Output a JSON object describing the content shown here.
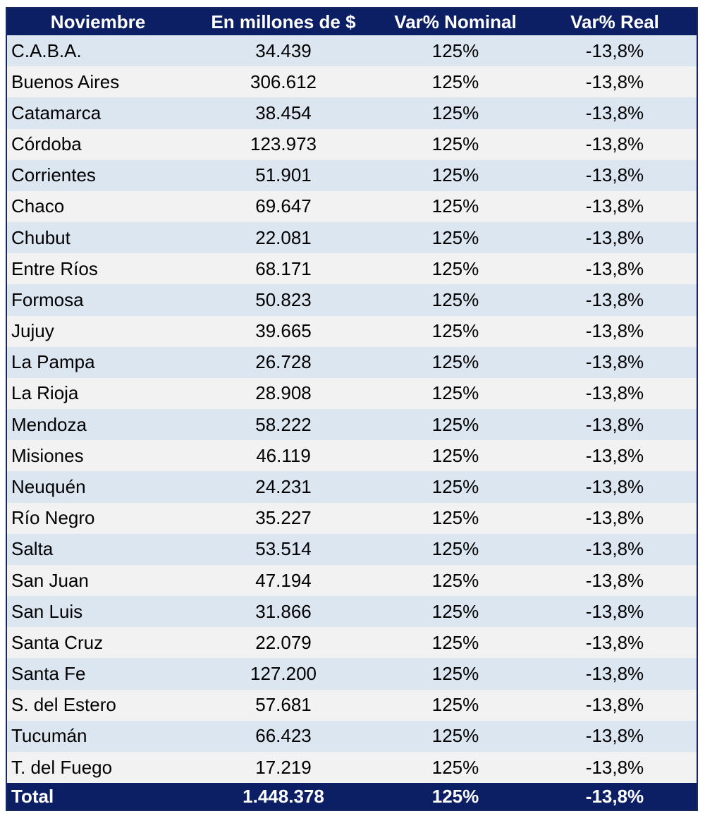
{
  "chart_data": {
    "type": "table",
    "columns": [
      "Noviembre",
      "En millones de $",
      "Var% Nominal",
      "Var% Real"
    ],
    "rows": [
      [
        "C.A.B.A.",
        "34.439",
        "125%",
        "-13,8%"
      ],
      [
        "Buenos Aires",
        "306.612",
        "125%",
        "-13,8%"
      ],
      [
        "Catamarca",
        "38.454",
        "125%",
        "-13,8%"
      ],
      [
        "Córdoba",
        "123.973",
        "125%",
        "-13,8%"
      ],
      [
        "Corrientes",
        "51.901",
        "125%",
        "-13,8%"
      ],
      [
        "Chaco",
        "69.647",
        "125%",
        "-13,8%"
      ],
      [
        "Chubut",
        "22.081",
        "125%",
        "-13,8%"
      ],
      [
        "Entre Ríos",
        "68.171",
        "125%",
        "-13,8%"
      ],
      [
        "Formosa",
        "50.823",
        "125%",
        "-13,8%"
      ],
      [
        "Jujuy",
        "39.665",
        "125%",
        "-13,8%"
      ],
      [
        "La Pampa",
        "26.728",
        "125%",
        "-13,8%"
      ],
      [
        "La Rioja",
        "28.908",
        "125%",
        "-13,8%"
      ],
      [
        "Mendoza",
        "58.222",
        "125%",
        "-13,8%"
      ],
      [
        "Misiones",
        "46.119",
        "125%",
        "-13,8%"
      ],
      [
        "Neuquén",
        "24.231",
        "125%",
        "-13,8%"
      ],
      [
        "Río Negro",
        "35.227",
        "125%",
        "-13,8%"
      ],
      [
        "Salta",
        "53.514",
        "125%",
        "-13,8%"
      ],
      [
        "San Juan",
        "47.194",
        "125%",
        "-13,8%"
      ],
      [
        "San Luis",
        "31.866",
        "125%",
        "-13,8%"
      ],
      [
        "Santa Cruz",
        "22.079",
        "125%",
        "-13,8%"
      ],
      [
        "Santa Fe",
        "127.200",
        "125%",
        "-13,8%"
      ],
      [
        "S. del Estero",
        "57.681",
        "125%",
        "-13,8%"
      ],
      [
        "Tucumán",
        "66.423",
        "125%",
        "-13,8%"
      ],
      [
        "T. del Fuego",
        "17.219",
        "125%",
        "-13,8%"
      ]
    ],
    "total": [
      "Total",
      "1.448.378",
      "125%",
      "-13,8%"
    ]
  },
  "colors": {
    "header_bg": "#0d1f64",
    "row_odd_bg": "#dce6f1",
    "row_even_bg": "#f2f2f2",
    "header_text": "#ffffff",
    "body_text": "#000000"
  }
}
